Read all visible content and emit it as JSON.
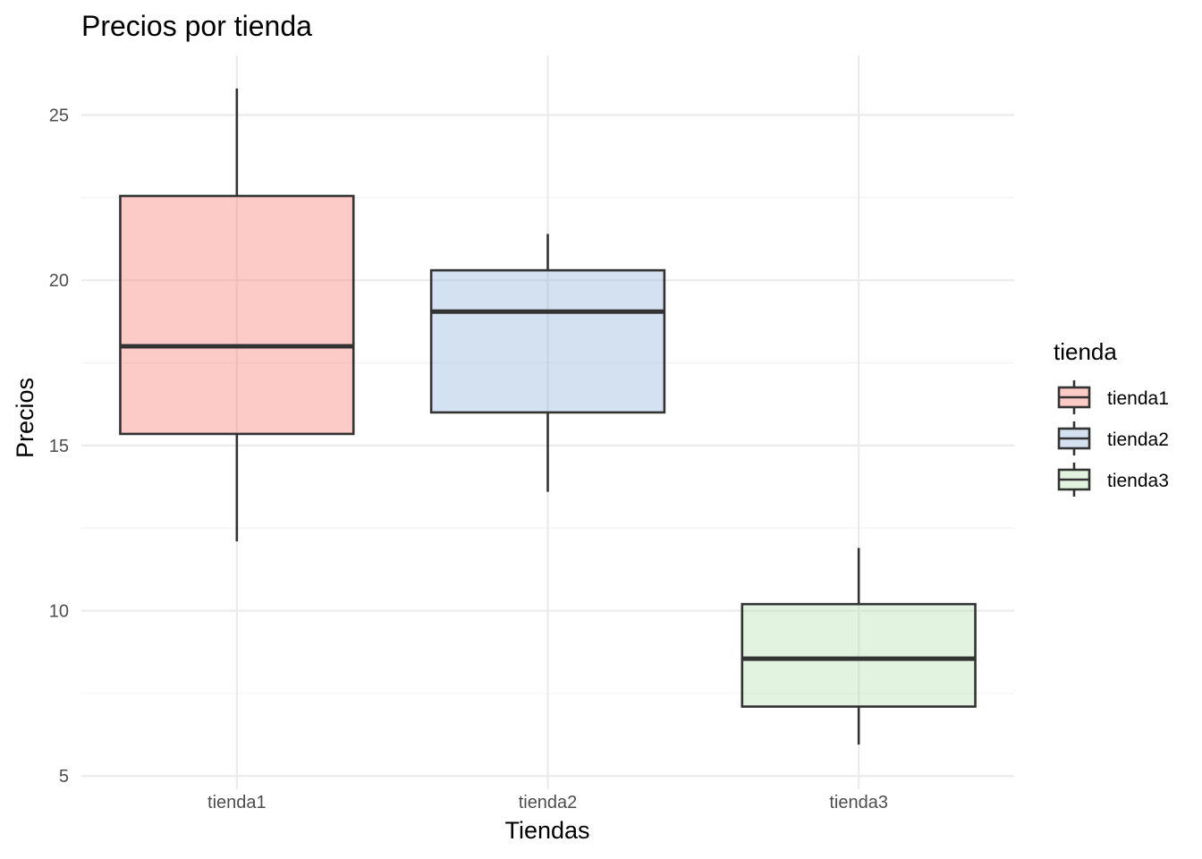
{
  "chart_data": {
    "type": "boxplot",
    "title": "Precios por tienda",
    "xlabel": "Tiendas",
    "ylabel": "Precios",
    "ylim": [
      4.6,
      26.8
    ],
    "yticks": [
      5,
      10,
      15,
      20,
      25
    ],
    "grid": true,
    "legend": {
      "title": "tienda",
      "position": "right"
    },
    "categories": [
      "tienda1",
      "tienda2",
      "tienda3"
    ],
    "series": [
      {
        "name": "tienda1",
        "min": 12.1,
        "q1": 15.35,
        "median": 18.0,
        "q3": 22.55,
        "max": 25.8,
        "color": "#F8766D"
      },
      {
        "name": "tienda2",
        "min": 13.6,
        "q1": 16.0,
        "median": 19.05,
        "q3": 20.3,
        "max": 21.4,
        "color": "#8FB1D8"
      },
      {
        "name": "tienda3",
        "min": 5.95,
        "q1": 7.1,
        "median": 8.55,
        "q3": 10.2,
        "max": 11.9,
        "color": "#B4E2AE"
      }
    ]
  }
}
